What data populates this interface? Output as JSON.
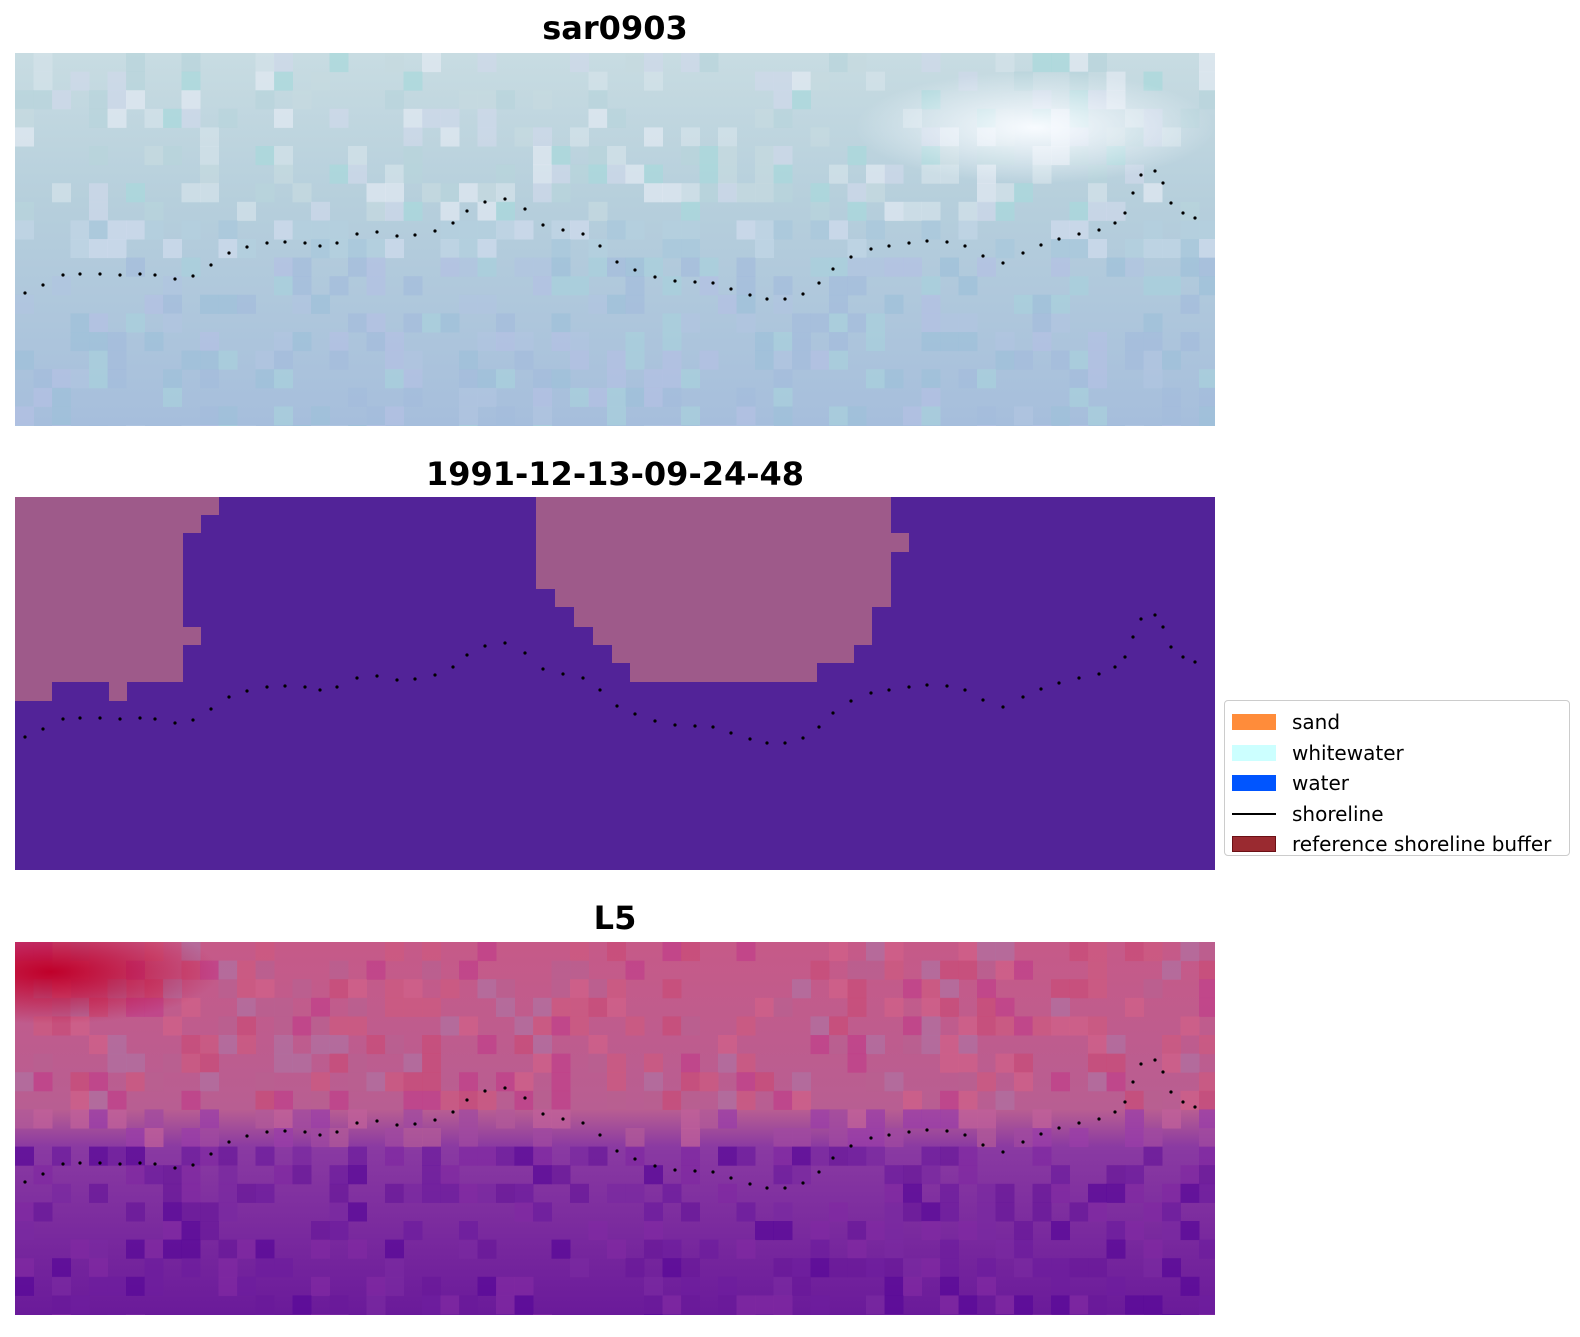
{
  "chart_data": [
    {
      "type": "heatmap",
      "title": "sar0903",
      "image": "composite RGB image (pale blue-grey tones, brighter near top-right)",
      "grid": false,
      "axes_visible": false,
      "colors": {
        "base": "#b0c8dc",
        "shoreline": "#000000"
      }
    },
    {
      "type": "heatmap",
      "title": "1991-12-13-09-24-48",
      "image": "classified image (purple water class, mauve regions top-left and top-center)",
      "grid": false,
      "axes_visible": false,
      "colors": {
        "water_class": "#522398",
        "other_class": "#9e5a8a",
        "shoreline": "#000000"
      }
    },
    {
      "type": "heatmap",
      "title": "L5",
      "image": "false-colour image (red/pink upper area, violet lower area)",
      "grid": false,
      "axes_visible": false,
      "colors": {
        "upper": "#c0577e",
        "lower": "#6a1a9a",
        "shoreline": "#000000"
      }
    }
  ],
  "legend": {
    "placement": "right of middle panel",
    "items": [
      {
        "label": "sand",
        "kind": "patch",
        "color": "#ff8c3a"
      },
      {
        "label": "whitewater",
        "kind": "patch",
        "color": "#ccffff"
      },
      {
        "label": "water",
        "kind": "patch",
        "color": "#0055ff"
      },
      {
        "label": "shoreline",
        "kind": "line",
        "color": "#000000"
      },
      {
        "label": "reference shoreline buffer",
        "kind": "patch",
        "color": "#9a2a30",
        "edge": "#6b1015"
      }
    ]
  }
}
